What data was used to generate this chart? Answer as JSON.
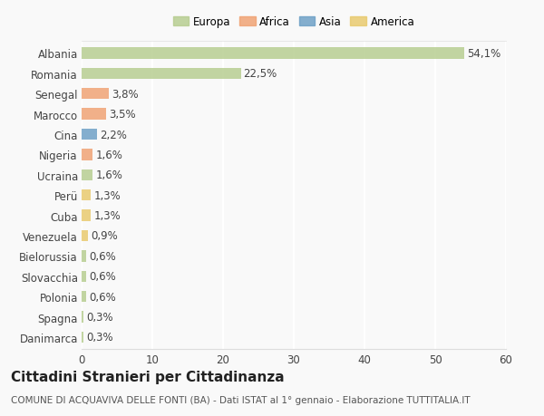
{
  "categories": [
    "Albania",
    "Romania",
    "Senegal",
    "Marocco",
    "Cina",
    "Nigeria",
    "Ucraina",
    "Perü",
    "Cuba",
    "Venezuela",
    "Bielorussia",
    "Slovacchia",
    "Polonia",
    "Spagna",
    "Danimarca"
  ],
  "values": [
    54.1,
    22.5,
    3.8,
    3.5,
    2.2,
    1.6,
    1.6,
    1.3,
    1.3,
    0.9,
    0.6,
    0.6,
    0.6,
    0.3,
    0.3
  ],
  "labels": [
    "54,1%",
    "22,5%",
    "3,8%",
    "3,5%",
    "2,2%",
    "1,6%",
    "1,6%",
    "1,3%",
    "1,3%",
    "0,9%",
    "0,6%",
    "0,6%",
    "0,6%",
    "0,3%",
    "0,3%"
  ],
  "colors": [
    "#b5cc8e",
    "#b5cc8e",
    "#f0a070",
    "#f0a070",
    "#6a9ec5",
    "#f0a070",
    "#b5cc8e",
    "#e8c96a",
    "#e8c96a",
    "#e8c96a",
    "#b5cc8e",
    "#b5cc8e",
    "#b5cc8e",
    "#b5cc8e",
    "#b5cc8e"
  ],
  "legend_labels": [
    "Europa",
    "Africa",
    "Asia",
    "America"
  ],
  "legend_colors": [
    "#b5cc8e",
    "#f0a070",
    "#6a9ec5",
    "#e8c96a"
  ],
  "xlim": [
    0,
    60
  ],
  "xticks": [
    0,
    10,
    20,
    30,
    40,
    50,
    60
  ],
  "title": "Cittadini Stranieri per Cittadinanza",
  "subtitle": "COMUNE DI ACQUAVIVA DELLE FONTI (BA) - Dati ISTAT al 1° gennaio - Elaborazione TUTTITALIA.IT",
  "background_color": "#f9f9f9",
  "bar_height": 0.55,
  "label_fontsize": 8.5,
  "tick_fontsize": 8.5,
  "title_fontsize": 11,
  "subtitle_fontsize": 7.5
}
